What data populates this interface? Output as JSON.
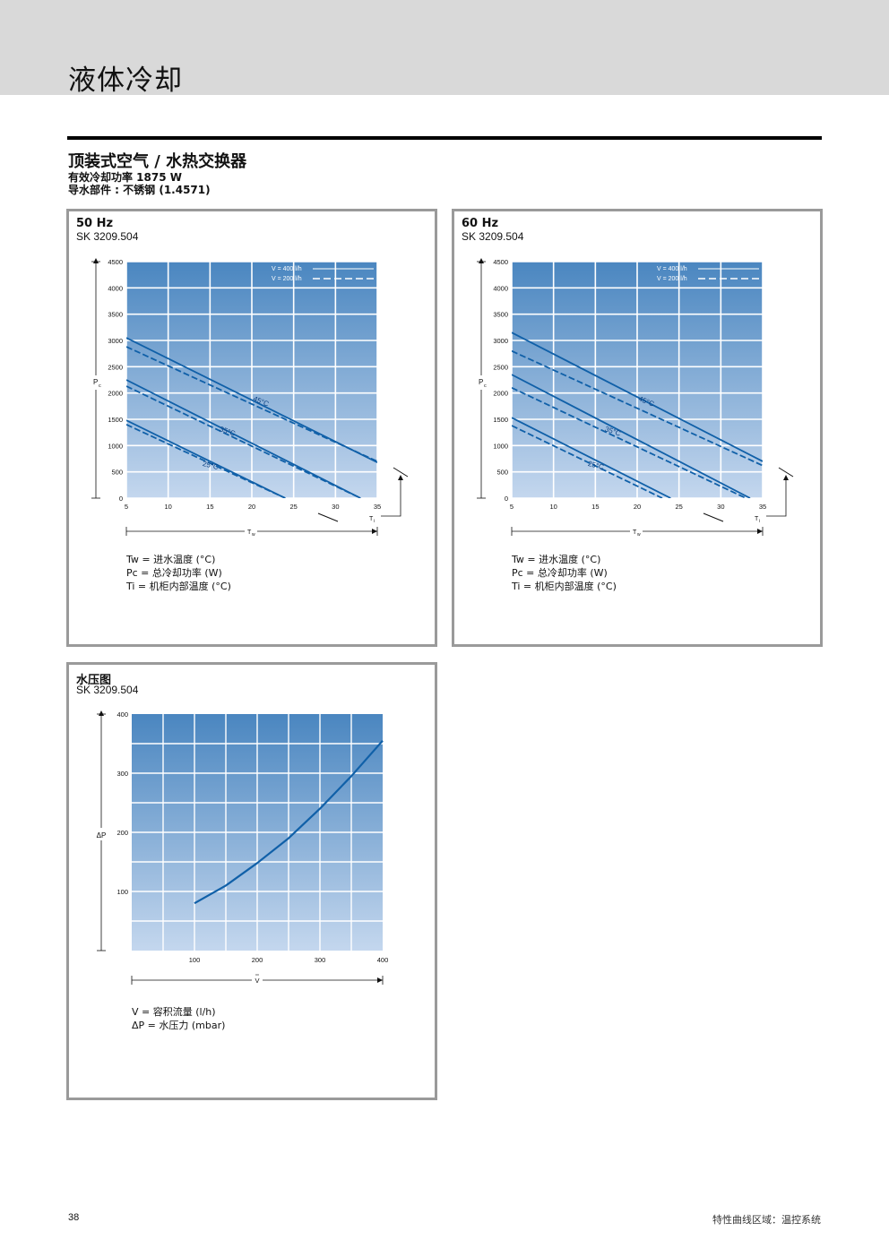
{
  "header": {
    "title": "液体冷却"
  },
  "section": {
    "title": "顶装式空气 / 水热交换器",
    "line1": "有效冷却功率 1875 W",
    "line2": "导水部件 : 不锈钢 (1.4571)"
  },
  "colors": {
    "grad_top": "#4a86c0",
    "grad_bottom": "#c4d7ee",
    "curve": "#1060a8",
    "frame": "#9a9a9a"
  },
  "legend_box": {
    "solid": "V = 400 l/h",
    "dashed": "V = 200 l/h"
  },
  "legend_defs": {
    "tw": "Tw = 进水温度 (°C)",
    "pc": "Pc = 总冷却功率 (W)",
    "ti": "Ti  = 机柜内部温度 (°C)",
    "v": "V   = 容积流量 (l/h)",
    "dp": "ΔP = 水压力 (mbar)"
  },
  "axis_labels": {
    "pc": "Pc",
    "tw": "Tw",
    "ti": "Ti",
    "v": "V",
    "dp": "ΔP"
  },
  "panel50": {
    "title": "50 Hz",
    "model": "SK 3209.504"
  },
  "panel60": {
    "title": "60 Hz",
    "model": "SK 3209.504"
  },
  "panelP": {
    "title": "水压图",
    "model": "SK 3209.504"
  },
  "chart_data": [
    {
      "type": "line",
      "title": "50 Hz",
      "xlabel": "Tw",
      "ylabel": "Pc",
      "xlim": [
        5,
        35
      ],
      "ylim": [
        0,
        4500
      ],
      "xticks": [
        5,
        10,
        15,
        20,
        25,
        30,
        35
      ],
      "yticks": [
        0,
        500,
        1000,
        1500,
        2000,
        2500,
        3000,
        3500,
        4000,
        4500
      ],
      "series": [
        {
          "name": "45°C",
          "flow": "V = 400 l/h",
          "style": "solid",
          "x": [
            5,
            35
          ],
          "y": [
            3050,
            680
          ]
        },
        {
          "name": "45°C",
          "flow": "V = 200 l/h",
          "style": "dashed",
          "x": [
            5,
            35
          ],
          "y": [
            2880,
            700
          ]
        },
        {
          "name": "35°C",
          "flow": "V = 400 l/h",
          "style": "solid",
          "x": [
            5,
            33
          ],
          "y": [
            2250,
            0
          ]
        },
        {
          "name": "35°C",
          "flow": "V = 200 l/h",
          "style": "dashed",
          "x": [
            5,
            33
          ],
          "y": [
            2130,
            0
          ]
        },
        {
          "name": "25°C",
          "flow": "V = 400 l/h",
          "style": "solid",
          "x": [
            5,
            24
          ],
          "y": [
            1480,
            0
          ]
        },
        {
          "name": "25°C",
          "flow": "V = 200 l/h",
          "style": "dashed",
          "x": [
            5,
            24
          ],
          "y": [
            1400,
            0
          ]
        }
      ],
      "annotations": [
        "45°C",
        "35°C",
        "25°C"
      ]
    },
    {
      "type": "line",
      "title": "60 Hz",
      "xlabel": "Tw",
      "ylabel": "Pc",
      "xlim": [
        5,
        35
      ],
      "ylim": [
        0,
        4500
      ],
      "xticks": [
        5,
        10,
        15,
        20,
        25,
        30,
        35
      ],
      "yticks": [
        0,
        500,
        1000,
        1500,
        2000,
        2500,
        3000,
        3500,
        4000,
        4500
      ],
      "series": [
        {
          "name": "45°C",
          "flow": "V = 400 l/h",
          "style": "solid",
          "x": [
            5,
            35
          ],
          "y": [
            3150,
            700
          ]
        },
        {
          "name": "45°C",
          "flow": "V = 200 l/h",
          "style": "dashed",
          "x": [
            5,
            35
          ],
          "y": [
            2800,
            620
          ]
        },
        {
          "name": "35°C",
          "flow": "V = 400 l/h",
          "style": "solid",
          "x": [
            5,
            33.5
          ],
          "y": [
            2350,
            0
          ]
        },
        {
          "name": "35°C",
          "flow": "V = 200 l/h",
          "style": "dashed",
          "x": [
            5,
            33
          ],
          "y": [
            2100,
            0
          ]
        },
        {
          "name": "25°C",
          "flow": "V = 400 l/h",
          "style": "solid",
          "x": [
            5,
            24
          ],
          "y": [
            1530,
            0
          ]
        },
        {
          "name": "25°C",
          "flow": "V = 200 l/h",
          "style": "dashed",
          "x": [
            5,
            23
          ],
          "y": [
            1380,
            0
          ]
        }
      ],
      "annotations": [
        "45°C",
        "35°C",
        "25°C"
      ]
    },
    {
      "type": "line",
      "title": "水压图",
      "xlabel": "V",
      "ylabel": "ΔP",
      "xlim": [
        0,
        400
      ],
      "ylim": [
        0,
        400
      ],
      "xticks": [
        100,
        200,
        300,
        400
      ],
      "yticks": [
        100,
        200,
        300,
        400
      ],
      "series": [
        {
          "name": "",
          "x": [
            100,
            150,
            200,
            250,
            300,
            350,
            400
          ],
          "y": [
            80,
            110,
            148,
            190,
            240,
            295,
            355
          ]
        }
      ]
    }
  ],
  "footer": {
    "page": "38",
    "right": "特性曲线区域：温控系统"
  }
}
